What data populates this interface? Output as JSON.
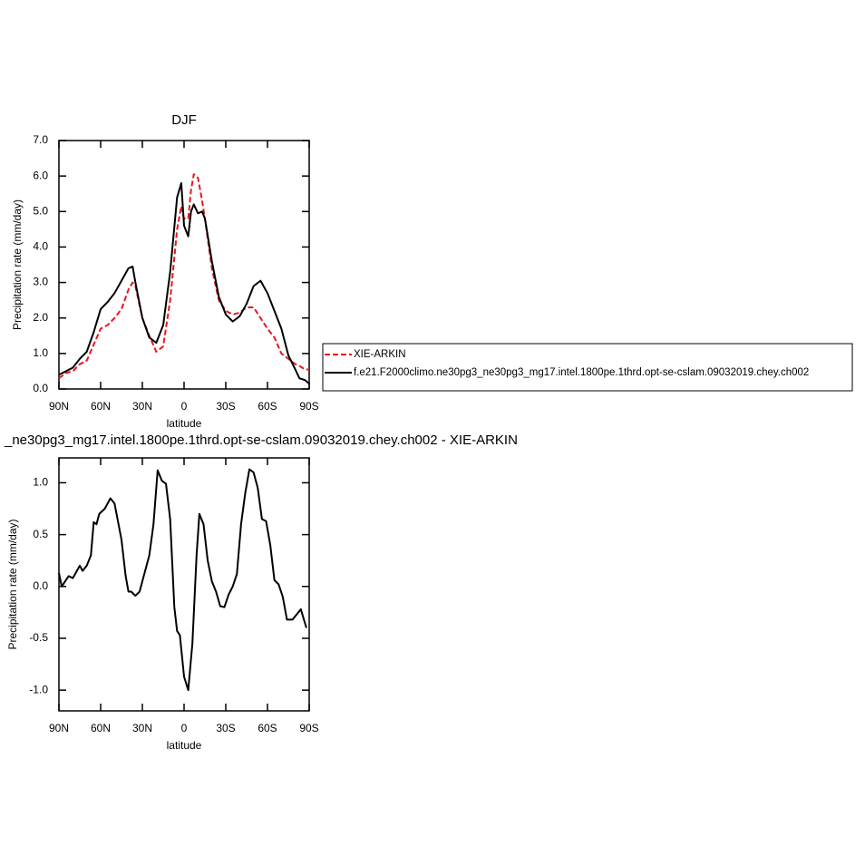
{
  "chart_data": [
    {
      "type": "line",
      "title": "DJF",
      "x_label": "latitude",
      "y_label": "Precipitation rate (mm/day)",
      "x": [
        90,
        85,
        80,
        75,
        70,
        65,
        60,
        55,
        50,
        45,
        40,
        37,
        35,
        30,
        25,
        20,
        15,
        10,
        5,
        2,
        0,
        -3,
        -5,
        -7,
        -10,
        -13,
        -15,
        -20,
        -25,
        -30,
        -35,
        -40,
        -45,
        -50,
        -55,
        -60,
        -65,
        -70,
        -75,
        -80,
        -83,
        -87,
        -90
      ],
      "series": [
        {
          "name": "XIE-ARKIN",
          "color": "#e8171f",
          "dashed": true,
          "values": [
            0.3,
            0.45,
            0.5,
            0.7,
            0.8,
            1.25,
            1.7,
            1.8,
            2.0,
            2.25,
            2.8,
            3.0,
            2.9,
            2.0,
            1.5,
            1.05,
            1.2,
            2.5,
            4.5,
            5.15,
            4.8,
            4.8,
            5.6,
            6.05,
            5.95,
            5.3,
            4.8,
            3.4,
            2.5,
            2.2,
            2.1,
            2.15,
            2.3,
            2.3,
            2.0,
            1.7,
            1.45,
            1.0,
            0.85,
            0.7,
            0.65,
            0.55,
            0.55
          ]
        },
        {
          "name": "f.e21.F2000climo.ne30pg3_ne30pg3_mg17.intel.1800pe.1thrd.opt-se-cslam.09032019.chey.ch002",
          "color": "#000000",
          "dashed": false,
          "values": [
            0.4,
            0.5,
            0.6,
            0.85,
            1.05,
            1.6,
            2.25,
            2.45,
            2.7,
            3.05,
            3.4,
            3.45,
            3.0,
            2.0,
            1.45,
            1.3,
            1.8,
            3.3,
            5.4,
            5.8,
            4.6,
            4.3,
            5.0,
            5.2,
            4.95,
            5.0,
            4.8,
            3.6,
            2.6,
            2.1,
            1.9,
            2.05,
            2.4,
            2.9,
            3.05,
            2.7,
            2.2,
            1.7,
            0.95,
            0.55,
            0.3,
            0.25,
            0.15
          ]
        }
      ],
      "xlim": [
        90,
        -90
      ],
      "xticks": [
        {
          "value": 90,
          "label": "90N"
        },
        {
          "value": 60,
          "label": "60N"
        },
        {
          "value": 30,
          "label": "30N"
        },
        0,
        {
          "value": -30,
          "label": "30S"
        },
        {
          "value": -60,
          "label": "60S"
        },
        {
          "value": -90,
          "label": "90S"
        }
      ],
      "ylim": [
        0,
        7
      ],
      "yticks": [
        {
          "value": 0,
          "label": "0.0"
        },
        {
          "value": 1,
          "label": "1.0"
        },
        {
          "value": 2,
          "label": "2.0"
        },
        {
          "value": 3,
          "label": "3.0"
        },
        {
          "value": 4,
          "label": "4.0"
        },
        {
          "value": 5,
          "label": "5.0"
        },
        {
          "value": 6,
          "label": "6.0"
        },
        {
          "value": 7,
          "label": "7.0"
        }
      ],
      "legend": "right"
    },
    {
      "type": "line",
      "title": "_ne30pg3_mg17.intel.1800pe.1thrd.opt-se-cslam.09032019.chey.ch002 - XIE-ARKIN",
      "x_label": "latitude",
      "y_label": "Precipitation rate (mm/day)",
      "x": [
        90,
        88,
        83,
        80,
        75,
        73,
        70,
        67,
        65,
        63,
        61,
        57,
        53,
        50,
        45,
        42,
        40,
        38,
        35,
        32,
        28,
        25,
        22,
        19,
        16,
        13,
        10,
        7,
        5,
        3,
        0,
        -3,
        -6,
        -9,
        -11,
        -14,
        -17,
        -20,
        -23,
        -26,
        -29,
        -32,
        -35,
        -38,
        -41,
        -44,
        -47,
        -50,
        -53,
        -56,
        -59,
        -62,
        -65,
        -68,
        -71,
        -74,
        -78,
        -84,
        -88
      ],
      "values": [
        0.13,
        0.0,
        0.1,
        0.08,
        0.2,
        0.15,
        0.2,
        0.3,
        0.62,
        0.6,
        0.7,
        0.75,
        0.85,
        0.8,
        0.45,
        0.1,
        -0.05,
        -0.05,
        -0.09,
        -0.05,
        0.15,
        0.3,
        0.6,
        1.12,
        1.02,
        0.99,
        0.65,
        -0.2,
        -0.43,
        -0.47,
        -0.87,
        -1.0,
        -0.55,
        0.3,
        0.7,
        0.6,
        0.25,
        0.05,
        -0.05,
        -0.19,
        -0.2,
        -0.08,
        0.0,
        0.12,
        0.6,
        0.9,
        1.13,
        1.1,
        0.95,
        0.65,
        0.63,
        0.4,
        0.06,
        0.02,
        -0.1,
        -0.32,
        -0.32,
        -0.22,
        -0.4
      ],
      "color": "#000000",
      "xlim": [
        90,
        -90
      ],
      "xticks": [
        {
          "value": 90,
          "label": "90N"
        },
        {
          "value": 60,
          "label": "60N"
        },
        {
          "value": 30,
          "label": "30N"
        },
        0,
        {
          "value": -30,
          "label": "30S"
        },
        {
          "value": -60,
          "label": "60S"
        },
        {
          "value": -90,
          "label": "90S"
        }
      ],
      "ylim": [
        -1.2,
        1.24
      ],
      "yticks": [
        {
          "value": 1,
          "label": "1.0"
        },
        0.5,
        {
          "value": 0,
          "label": "0.0"
        },
        -0.5,
        {
          "value": -1,
          "label": "-1.0"
        }
      ]
    }
  ]
}
